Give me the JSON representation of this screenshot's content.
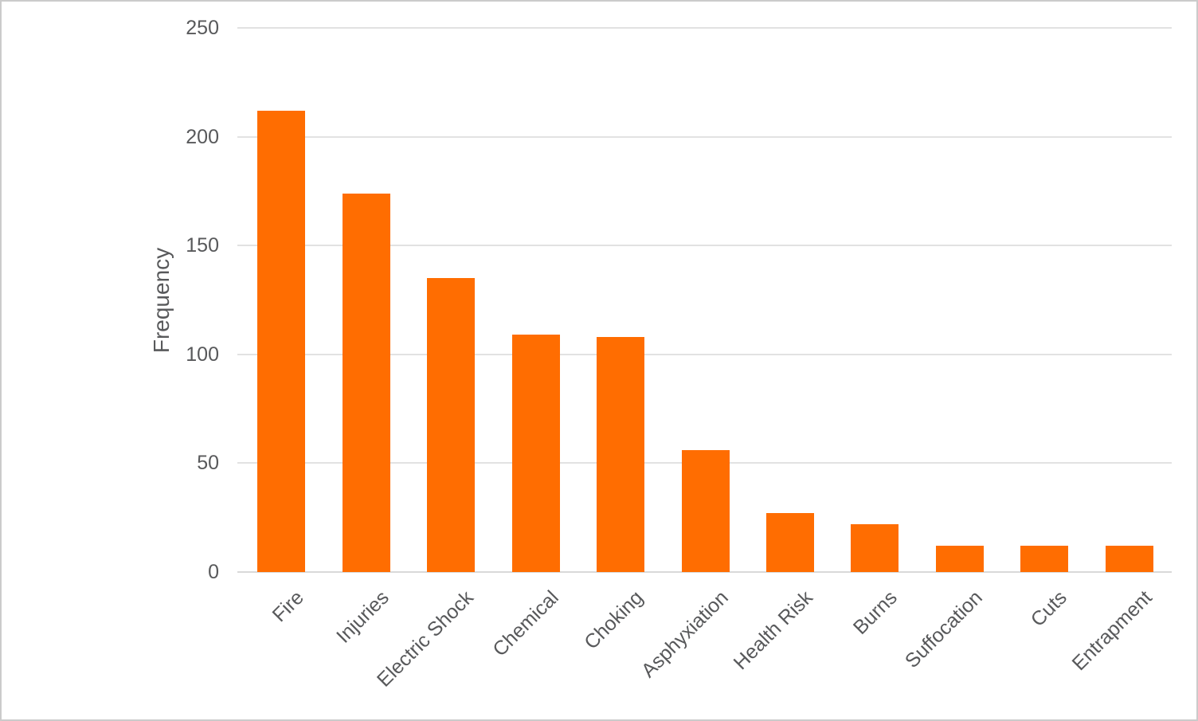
{
  "chart_data": {
    "type": "bar",
    "title": "",
    "xlabel": "",
    "ylabel": "Frequency",
    "categories": [
      "Fire",
      "Injuries",
      "Electric Shock",
      "Chemical",
      "Choking",
      "Asphyxiation",
      "Health Risk",
      "Burns",
      "Suffocation",
      "Cuts",
      "Entrapment"
    ],
    "values": [
      212,
      174,
      135,
      109,
      108,
      56,
      27,
      22,
      12,
      12,
      12
    ],
    "ylim": [
      0,
      250
    ],
    "yticks": [
      0,
      50,
      100,
      150,
      200,
      250
    ],
    "grid": true,
    "legend_position": "none",
    "bar_color": "#FF6D01",
    "axis_text_color": "#58595B",
    "gridline_color": "#E2E2E2",
    "baseline_color": "#D9D9D9",
    "canvas_border_color": "#CBCBCB",
    "background_color": "#FFFFFF"
  }
}
